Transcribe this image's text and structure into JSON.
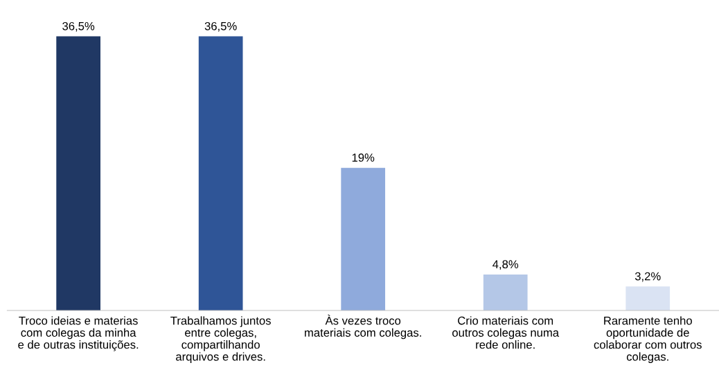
{
  "chart_data": {
    "type": "bar",
    "categories": [
      "Troco ideias e materias\ncom colegas da minha\ne de outras instituições.",
      "Trabalhamos juntos\nentre colegas,\ncompartilhando\narquivos e drives.",
      "Às vezes troco\nmateriais com colegas.",
      "Crio materiais com\noutros colegas numa\nrede online.",
      "Raramente tenho\noportunidade de\ncolaborar com outros\ncolegas."
    ],
    "values": [
      36.5,
      36.5,
      19,
      4.8,
      3.2
    ],
    "colors": [
      "#203864",
      "#2f5597",
      "#8faadc",
      "#b4c7e7",
      "#dae3f3"
    ],
    "value_labels": [
      "36,5%",
      "36,5%",
      "19%",
      "4,8%",
      "3,2%"
    ],
    "grid": false,
    "legend": false
  }
}
